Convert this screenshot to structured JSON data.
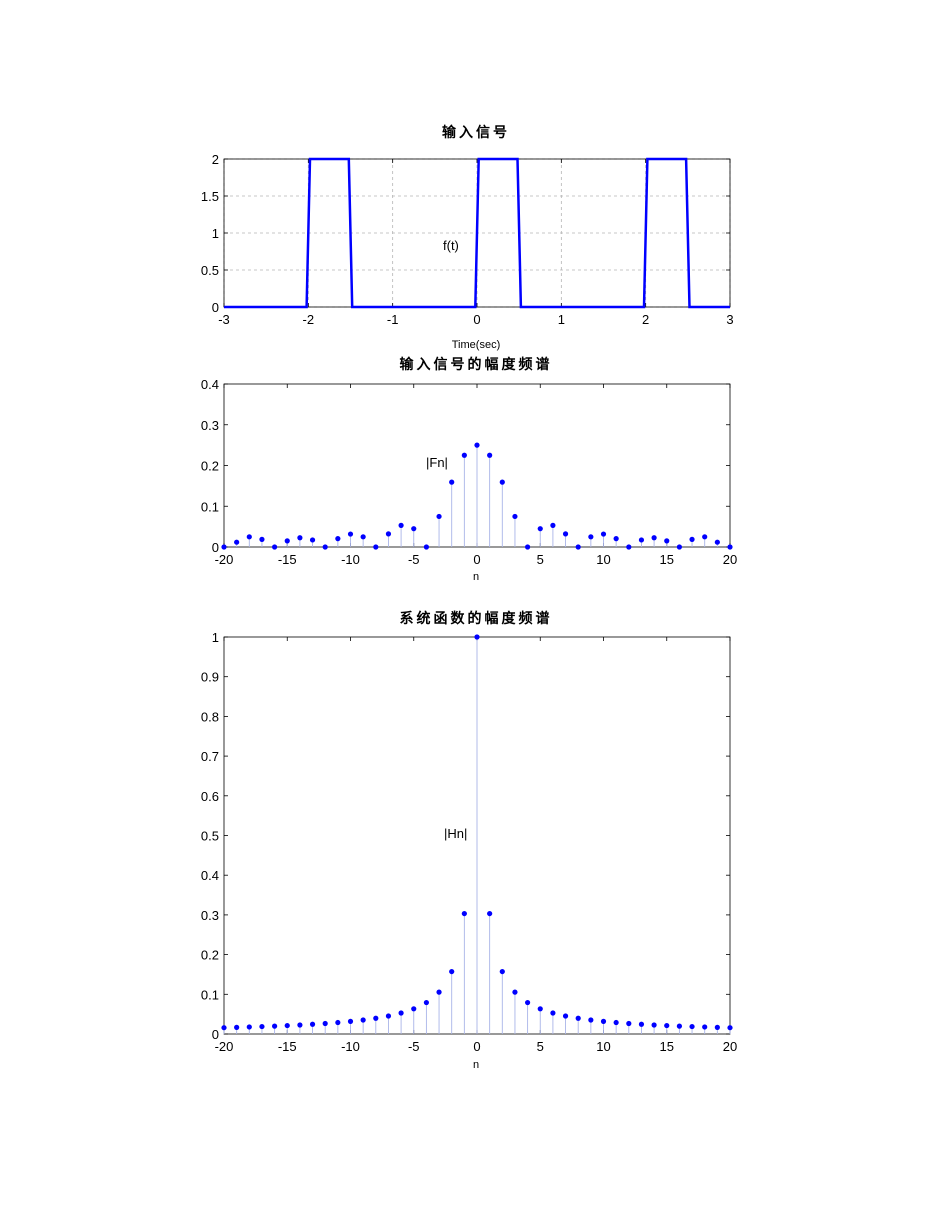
{
  "chart_data": [
    {
      "type": "line",
      "title": "输入信号",
      "xlabel": "Time(sec)",
      "ylabel": "",
      "annotation": "f(t)",
      "xlim": [
        -3,
        3
      ],
      "ylim": [
        0,
        2
      ],
      "xticks": [
        -3,
        -2,
        -1,
        0,
        1,
        2,
        3
      ],
      "yticks": [
        0,
        0.5,
        1,
        1.5,
        2
      ],
      "ytick_labels": [
        "0",
        "0.5",
        "1",
        "1.5",
        "2"
      ],
      "grid": true,
      "color": "#0000ff",
      "series": [
        {
          "x": [
            -3,
            -2.02,
            -1.98,
            -1.52,
            -1.48,
            -0.02,
            0.02,
            0.48,
            0.52,
            1.98,
            2.02,
            2.48,
            2.52,
            3
          ],
          "values": [
            0,
            0,
            2,
            2,
            0,
            0,
            2,
            2,
            0,
            0,
            2,
            2,
            0,
            0
          ]
        }
      ]
    },
    {
      "type": "stem",
      "title": "输入信号的幅度频谱",
      "xlabel": "n",
      "ylabel": "",
      "annotation": "|Fn|",
      "xlim": [
        -20,
        20
      ],
      "ylim": [
        0,
        0.4
      ],
      "xticks": [
        -20,
        -15,
        -10,
        -5,
        0,
        5,
        10,
        15,
        20
      ],
      "yticks": [
        0,
        0.1,
        0.2,
        0.3,
        0.4
      ],
      "ytick_labels": [
        "0",
        "0.1",
        "0.2",
        "0.3",
        "0.4"
      ],
      "grid": false,
      "color": "#0000ff",
      "series": [
        {
          "x": [
            -20,
            -19,
            -18,
            -17,
            -16,
            -15,
            -14,
            -13,
            -12,
            -11,
            -10,
            -9,
            -8,
            -7,
            -6,
            -5,
            -4,
            -3,
            -2,
            -1,
            0,
            1,
            2,
            3,
            4,
            5,
            6,
            7,
            8,
            9,
            10,
            11,
            12,
            13,
            14,
            15,
            16,
            17,
            18,
            19,
            20
          ],
          "values": [
            0,
            0.0118,
            0.025,
            0.0187,
            0,
            0.015,
            0.0227,
            0.0173,
            0,
            0.0205,
            0.0318,
            0.025,
            0,
            0.0322,
            0.0531,
            0.045,
            0,
            0.075,
            0.1592,
            0.2251,
            0.25,
            0.2251,
            0.1592,
            0.075,
            0,
            0.045,
            0.0531,
            0.0322,
            0,
            0.025,
            0.0318,
            0.0205,
            0,
            0.0173,
            0.0227,
            0.015,
            0,
            0.0187,
            0.025,
            0.0118,
            0
          ]
        }
      ]
    },
    {
      "type": "stem",
      "title": "系统函数的幅度频谱",
      "xlabel": "n",
      "ylabel": "",
      "annotation": "|Hn|",
      "xlim": [
        -20,
        20
      ],
      "ylim": [
        0,
        1
      ],
      "xticks": [
        -20,
        -15,
        -10,
        -5,
        0,
        5,
        10,
        15,
        20
      ],
      "yticks": [
        0,
        0.1,
        0.2,
        0.3,
        0.4,
        0.5,
        0.6,
        0.7,
        0.8,
        0.9,
        1
      ],
      "ytick_labels": [
        "0",
        "0.1",
        "0.2",
        "0.3",
        "0.4",
        "0.5",
        "0.6",
        "0.7",
        "0.8",
        "0.9",
        "1"
      ],
      "grid": false,
      "color": "#0000ff",
      "series": [
        {
          "x": [
            -20,
            -19,
            -18,
            -17,
            -16,
            -15,
            -14,
            -13,
            -12,
            -11,
            -10,
            -9,
            -8,
            -7,
            -6,
            -5,
            -4,
            -3,
            -2,
            -1,
            0,
            1,
            2,
            3,
            4,
            5,
            6,
            7,
            8,
            9,
            10,
            11,
            12,
            13,
            14,
            15,
            16,
            17,
            18,
            19,
            20
          ],
          "values": [
            0.0159,
            0.0167,
            0.0177,
            0.0187,
            0.0199,
            0.0212,
            0.0227,
            0.0245,
            0.0265,
            0.0289,
            0.0318,
            0.0353,
            0.0397,
            0.0454,
            0.0529,
            0.0635,
            0.0792,
            0.1055,
            0.1572,
            0.3033,
            1,
            0.3033,
            0.1572,
            0.1055,
            0.0792,
            0.0635,
            0.0529,
            0.0454,
            0.0397,
            0.0353,
            0.0318,
            0.0289,
            0.0265,
            0.0245,
            0.0227,
            0.0212,
            0.0199,
            0.0187,
            0.0177,
            0.0167,
            0.0159
          ]
        }
      ]
    }
  ]
}
